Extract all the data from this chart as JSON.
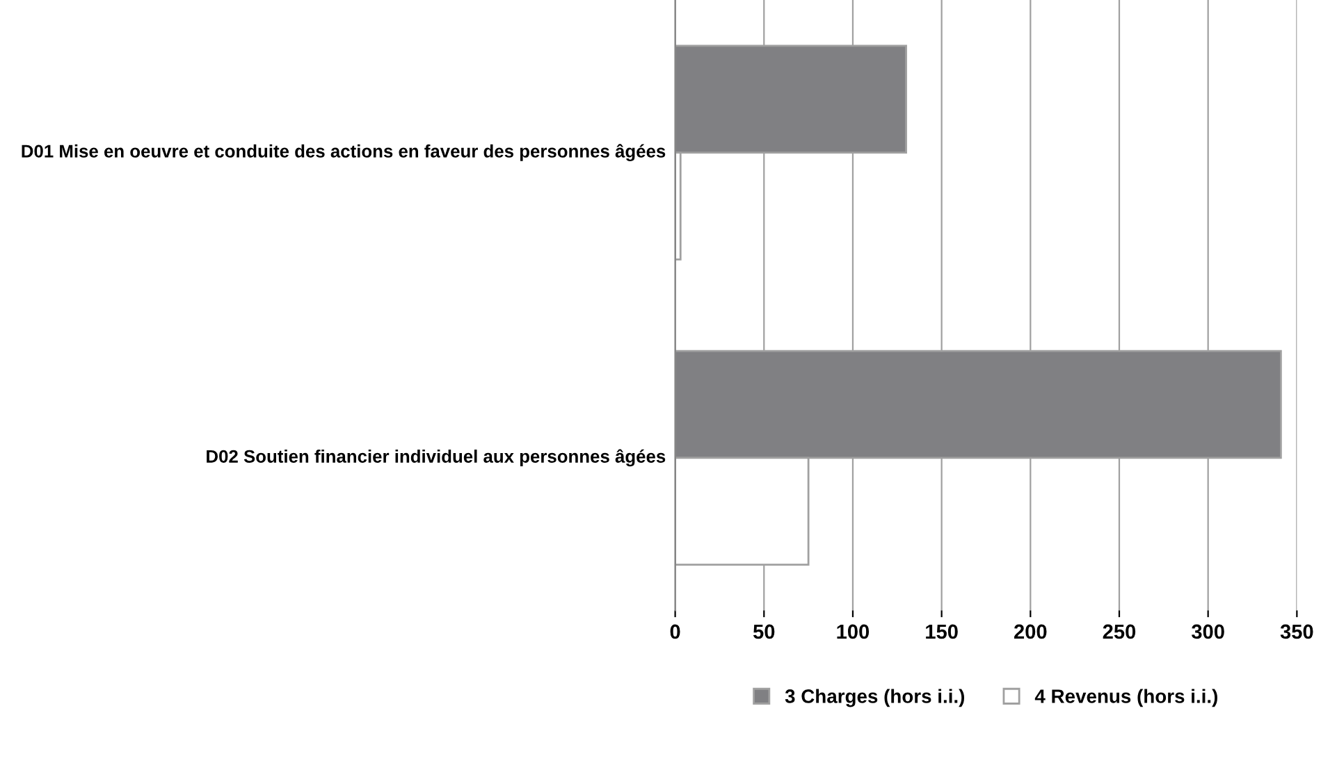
{
  "chart_data": {
    "type": "bar",
    "orientation": "horizontal",
    "categories": [
      "D01 Mise en oeuvre et conduite des actions en faveur des personnes âgées",
      "D02 Soutien financier individuel aux personnes âgées"
    ],
    "series": [
      {
        "name": "3 Charges (hors i.i.)",
        "color": "#808083",
        "values": [
          130,
          341
        ]
      },
      {
        "name": "4 Revenus (hors i.i.)",
        "color": "#ffffff",
        "values": [
          3,
          75
        ]
      }
    ],
    "xlim": [
      0,
      350
    ],
    "xticks": [
      0,
      50,
      100,
      150,
      200,
      250,
      300,
      350
    ],
    "grid": "x",
    "legend": "bottom"
  }
}
